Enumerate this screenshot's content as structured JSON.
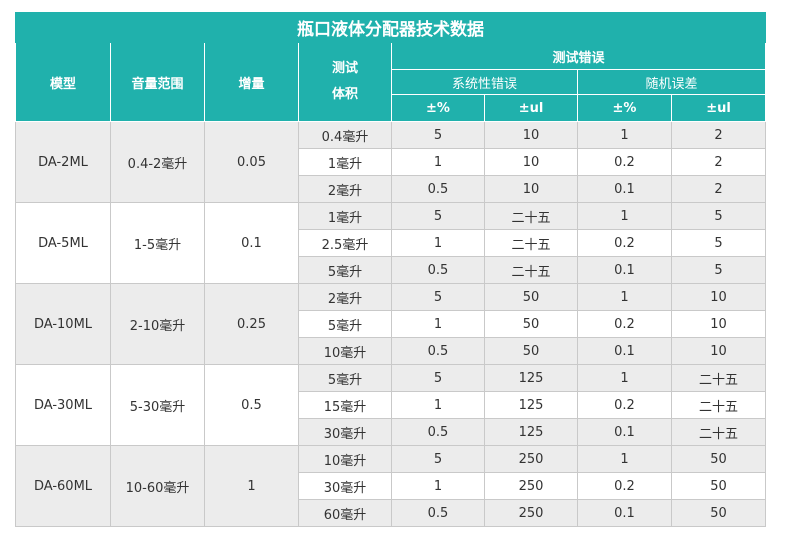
{
  "title": "瓶口液体分配器技术数据",
  "headers": {
    "model": "模型",
    "range": "音量范围",
    "increment": "增量",
    "test_volume_line1": "测试",
    "test_volume_line2": "体积",
    "test_error": "测试错误",
    "systematic_error": "系统性错误",
    "random_error": "随机误差",
    "pct": "±%",
    "ul": "±ul"
  },
  "groups": [
    {
      "model": "DA-2ML",
      "range": "0.4-2毫升",
      "increment": "0.05",
      "rows": [
        {
          "vol": "0.4毫升",
          "sp": "5",
          "su": "10",
          "rp": "1",
          "ru": "2"
        },
        {
          "vol": "1毫升",
          "sp": "1",
          "su": "10",
          "rp": "0.2",
          "ru": "2"
        },
        {
          "vol": "2毫升",
          "sp": "0.5",
          "su": "10",
          "rp": "0.1",
          "ru": "2"
        }
      ]
    },
    {
      "model": "DA-5ML",
      "range": "1-5毫升",
      "increment": "0.1",
      "rows": [
        {
          "vol": "1毫升",
          "sp": "5",
          "su": "二十五",
          "rp": "1",
          "ru": "5"
        },
        {
          "vol": "2.5毫升",
          "sp": "1",
          "su": "二十五",
          "rp": "0.2",
          "ru": "5"
        },
        {
          "vol": "5毫升",
          "sp": "0.5",
          "su": "二十五",
          "rp": "0.1",
          "ru": "5"
        }
      ]
    },
    {
      "model": "DA-10ML",
      "range": "2-10毫升",
      "increment": "0.25",
      "rows": [
        {
          "vol": "2毫升",
          "sp": "5",
          "su": "50",
          "rp": "1",
          "ru": "10"
        },
        {
          "vol": "5毫升",
          "sp": "1",
          "su": "50",
          "rp": "0.2",
          "ru": "10"
        },
        {
          "vol": "10毫升",
          "sp": "0.5",
          "su": "50",
          "rp": "0.1",
          "ru": "10"
        }
      ]
    },
    {
      "model": "DA-30ML",
      "range": "5-30毫升",
      "increment": "0.5",
      "rows": [
        {
          "vol": "5毫升",
          "sp": "5",
          "su": "125",
          "rp": "1",
          "ru": "二十五"
        },
        {
          "vol": "15毫升",
          "sp": "1",
          "su": "125",
          "rp": "0.2",
          "ru": "二十五"
        },
        {
          "vol": "30毫升",
          "sp": "0.5",
          "su": "125",
          "rp": "0.1",
          "ru": "二十五"
        }
      ]
    },
    {
      "model": "DA-60ML",
      "range": "10-60毫升",
      "increment": "1",
      "rows": [
        {
          "vol": "10毫升",
          "sp": "5",
          "su": "250",
          "rp": "1",
          "ru": "50"
        },
        {
          "vol": "30毫升",
          "sp": "1",
          "su": "250",
          "rp": "0.2",
          "ru": "50"
        },
        {
          "vol": "60毫升",
          "sp": "0.5",
          "su": "250",
          "rp": "0.1",
          "ru": "50"
        }
      ]
    }
  ]
}
